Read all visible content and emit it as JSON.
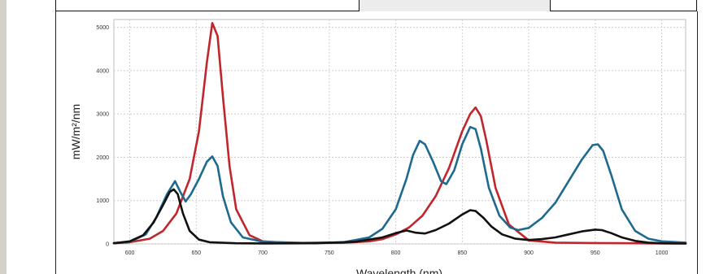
{
  "chart_data": {
    "type": "line",
    "title": "",
    "xlabel": "Wavelength (nm)",
    "ylabel": "mW/m²/nm",
    "xlim": [
      588,
      1018
    ],
    "ylim": [
      0,
      5000
    ],
    "x_ticks": [
      "600",
      "650",
      "700",
      "750",
      "800",
      "850",
      "900",
      "950",
      "1000"
    ],
    "y_ticks": [
      "0",
      "1000",
      "2000",
      "3000",
      "4000",
      "5000"
    ],
    "grid": true,
    "legend": "none",
    "series": [
      {
        "color": "#c0262b",
        "points": [
          [
            588,
            15
          ],
          [
            600,
            40
          ],
          [
            615,
            120
          ],
          [
            625,
            300
          ],
          [
            635,
            700
          ],
          [
            645,
            1500
          ],
          [
            652,
            2600
          ],
          [
            658,
            4200
          ],
          [
            662,
            5100
          ],
          [
            666,
            4800
          ],
          [
            670,
            3400
          ],
          [
            675,
            1800
          ],
          [
            680,
            800
          ],
          [
            690,
            200
          ],
          [
            700,
            60
          ],
          [
            720,
            20
          ],
          [
            760,
            25
          ],
          [
            780,
            60
          ],
          [
            790,
            110
          ],
          [
            800,
            220
          ],
          [
            810,
            380
          ],
          [
            820,
            650
          ],
          [
            830,
            1100
          ],
          [
            840,
            1750
          ],
          [
            850,
            2600
          ],
          [
            856,
            3000
          ],
          [
            860,
            3150
          ],
          [
            864,
            2950
          ],
          [
            868,
            2400
          ],
          [
            875,
            1300
          ],
          [
            885,
            450
          ],
          [
            900,
            80
          ],
          [
            920,
            30
          ],
          [
            950,
            20
          ],
          [
            1000,
            12
          ],
          [
            1018,
            10
          ]
        ]
      },
      {
        "color": "#1e6a8f",
        "points": [
          [
            588,
            20
          ],
          [
            600,
            50
          ],
          [
            612,
            220
          ],
          [
            620,
            620
          ],
          [
            628,
            1150
          ],
          [
            634,
            1450
          ],
          [
            638,
            1200
          ],
          [
            642,
            980
          ],
          [
            646,
            1150
          ],
          [
            652,
            1500
          ],
          [
            658,
            1900
          ],
          [
            662,
            2020
          ],
          [
            666,
            1800
          ],
          [
            670,
            1100
          ],
          [
            676,
            500
          ],
          [
            685,
            150
          ],
          [
            700,
            50
          ],
          [
            730,
            25
          ],
          [
            760,
            35
          ],
          [
            780,
            150
          ],
          [
            790,
            350
          ],
          [
            800,
            800
          ],
          [
            808,
            1500
          ],
          [
            813,
            2050
          ],
          [
            818,
            2380
          ],
          [
            822,
            2300
          ],
          [
            828,
            1900
          ],
          [
            834,
            1450
          ],
          [
            838,
            1380
          ],
          [
            844,
            1700
          ],
          [
            850,
            2300
          ],
          [
            856,
            2700
          ],
          [
            860,
            2650
          ],
          [
            864,
            2200
          ],
          [
            870,
            1300
          ],
          [
            878,
            650
          ],
          [
            886,
            380
          ],
          [
            892,
            320
          ],
          [
            900,
            370
          ],
          [
            910,
            600
          ],
          [
            920,
            950
          ],
          [
            930,
            1450
          ],
          [
            940,
            1950
          ],
          [
            948,
            2280
          ],
          [
            952,
            2300
          ],
          [
            956,
            2150
          ],
          [
            962,
            1600
          ],
          [
            970,
            800
          ],
          [
            980,
            300
          ],
          [
            990,
            120
          ],
          [
            1000,
            60
          ],
          [
            1018,
            30
          ]
        ]
      },
      {
        "color": "#111111",
        "points": [
          [
            588,
            15
          ],
          [
            600,
            60
          ],
          [
            610,
            200
          ],
          [
            618,
            500
          ],
          [
            625,
            900
          ],
          [
            630,
            1200
          ],
          [
            633,
            1260
          ],
          [
            636,
            1150
          ],
          [
            640,
            700
          ],
          [
            645,
            300
          ],
          [
            652,
            100
          ],
          [
            660,
            40
          ],
          [
            680,
            15
          ],
          [
            700,
            12
          ],
          [
            740,
            15
          ],
          [
            770,
            50
          ],
          [
            790,
            150
          ],
          [
            800,
            250
          ],
          [
            808,
            310
          ],
          [
            815,
            260
          ],
          [
            822,
            240
          ],
          [
            830,
            320
          ],
          [
            840,
            470
          ],
          [
            850,
            680
          ],
          [
            856,
            780
          ],
          [
            860,
            760
          ],
          [
            866,
            600
          ],
          [
            872,
            400
          ],
          [
            880,
            220
          ],
          [
            890,
            120
          ],
          [
            900,
            90
          ],
          [
            910,
            110
          ],
          [
            920,
            150
          ],
          [
            930,
            220
          ],
          [
            940,
            290
          ],
          [
            950,
            330
          ],
          [
            955,
            320
          ],
          [
            962,
            250
          ],
          [
            970,
            150
          ],
          [
            980,
            70
          ],
          [
            990,
            30
          ],
          [
            1000,
            15
          ],
          [
            1018,
            10
          ]
        ]
      }
    ]
  }
}
